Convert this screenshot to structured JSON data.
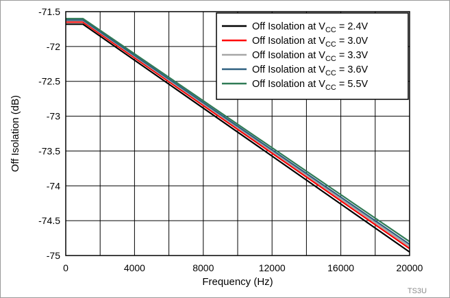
{
  "chart_data": {
    "type": "line",
    "title": "",
    "xlabel": "Frequency (Hz)",
    "ylabel": "Off Isolation (dB)",
    "xlim": [
      0,
      20000
    ],
    "ylim": [
      -75,
      -71.5
    ],
    "xticks": [
      0,
      4000,
      8000,
      12000,
      16000,
      20000
    ],
    "xtick_labels": [
      "0",
      "4000",
      "8000",
      "12000",
      "16000",
      "20000"
    ],
    "yticks": [
      -71.5,
      -72,
      -72.5,
      -73,
      -73.5,
      -74,
      -74.5,
      -75
    ],
    "ytick_labels": [
      "-71.5",
      "-72",
      "-72.5",
      "-73",
      "-73.5",
      "-74",
      "-74.5",
      "-75"
    ],
    "grid": true,
    "legend_position": "top-right",
    "figure_id": "TS3U",
    "series": [
      {
        "name_prefix": "Off Isolation at V",
        "name_sub": "CC",
        "name_suffix": " = 2.4V",
        "color": "#000000",
        "x": [
          0,
          1000,
          20000
        ],
        "y": [
          -71.68,
          -71.68,
          -74.95
        ]
      },
      {
        "name_prefix": "Off Isolation at V",
        "name_sub": "CC",
        "name_suffix": " = 3.0V",
        "color": "#ff0000",
        "x": [
          0,
          1000,
          20000
        ],
        "y": [
          -71.65,
          -71.65,
          -74.9
        ]
      },
      {
        "name_prefix": "Off Isolation at V",
        "name_sub": "CC",
        "name_suffix": " = 3.3V",
        "color": "#a6a6a6",
        "x": [
          0,
          1000,
          20000
        ],
        "y": [
          -71.63,
          -71.63,
          -74.87
        ]
      },
      {
        "name_prefix": "Off Isolation at V",
        "name_sub": "CC",
        "name_suffix": " = 3.6V",
        "color": "#2e5f80",
        "x": [
          0,
          1000,
          20000
        ],
        "y": [
          -71.62,
          -71.62,
          -74.84
        ]
      },
      {
        "name_prefix": "Off Isolation at V",
        "name_sub": "CC",
        "name_suffix": "  = 5.5V",
        "color": "#2f7a55",
        "x": [
          0,
          1000,
          20000
        ],
        "y": [
          -71.6,
          -71.6,
          -74.8
        ]
      }
    ]
  }
}
